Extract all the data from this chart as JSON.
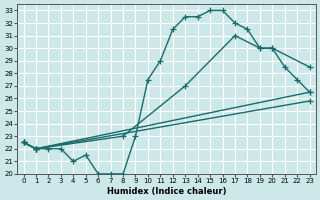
{
  "xlabel": "Humidex (Indice chaleur)",
  "bg_color": "#cde8e8",
  "grid_color": "#ffffff",
  "line_color": "#1a6b6b",
  "xlim": [
    -0.5,
    23.5
  ],
  "ylim": [
    20,
    33.5
  ],
  "xticks": [
    0,
    1,
    2,
    3,
    4,
    5,
    6,
    7,
    8,
    9,
    10,
    11,
    12,
    13,
    14,
    15,
    16,
    17,
    18,
    19,
    20,
    21,
    22,
    23
  ],
  "yticks": [
    20,
    21,
    22,
    23,
    24,
    25,
    26,
    27,
    28,
    29,
    30,
    31,
    32,
    33
  ],
  "line1_x": [
    0,
    1,
    2,
    3,
    4,
    5,
    6,
    7,
    8,
    9,
    10,
    11,
    12,
    13,
    14,
    15,
    16,
    17,
    18,
    19,
    20,
    21,
    22,
    23
  ],
  "line1_y": [
    22.5,
    22,
    22,
    22,
    21,
    21.5,
    20,
    20,
    20,
    23,
    27.5,
    29,
    31.5,
    32.5,
    32.5,
    33,
    33,
    32,
    31.5,
    30,
    30,
    28.5,
    27.5,
    26.5
  ],
  "line2_x": [
    0,
    1,
    8,
    13,
    17,
    19,
    20,
    23
  ],
  "line2_y": [
    22.5,
    22,
    23,
    27,
    31,
    30,
    30,
    28.5
  ],
  "line3_x": [
    0,
    1,
    23
  ],
  "line3_y": [
    22.5,
    22,
    26.5
  ],
  "line4_x": [
    0,
    1,
    23
  ],
  "line4_y": [
    22.5,
    22,
    25.8
  ],
  "marker": "+",
  "markersize": 4,
  "linewidth": 1.0
}
